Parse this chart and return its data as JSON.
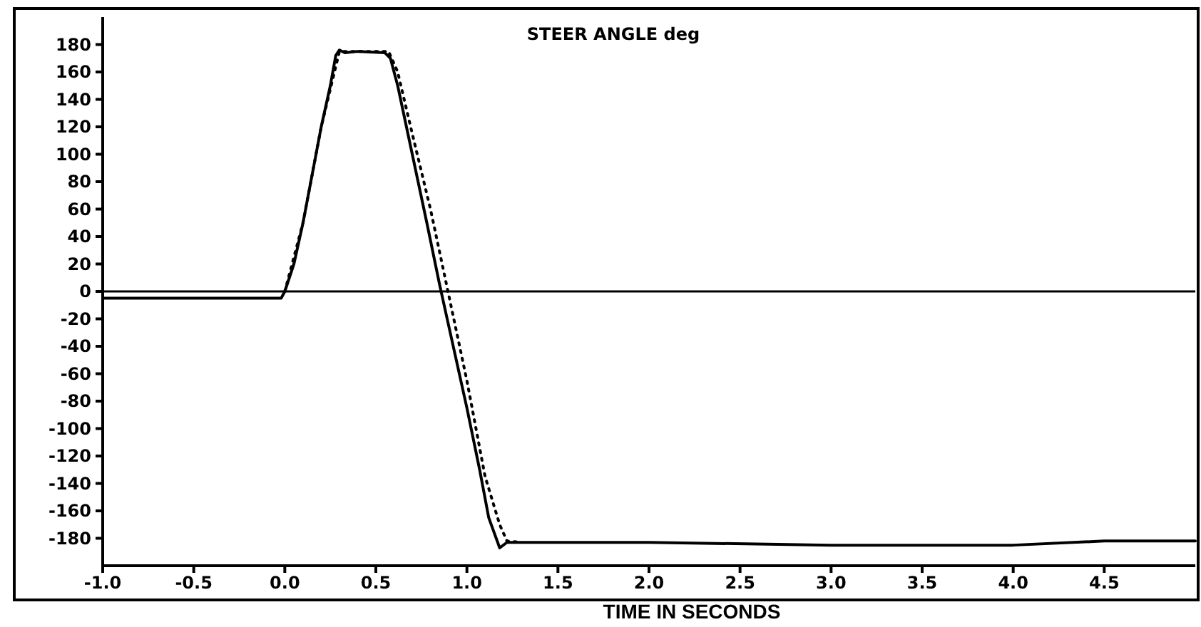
{
  "chart_data": {
    "type": "line",
    "title": "STEER ANGLE  deg",
    "xlabel": "TIME IN SECONDS",
    "xlim": [
      -1,
      5
    ],
    "xticks": [
      {
        "value": -1,
        "label": "-1.0"
      },
      {
        "value": -0.5,
        "label": "-0.5"
      },
      {
        "value": 0,
        "label": "0.0"
      },
      {
        "value": 0.5,
        "label": "0.5"
      },
      {
        "value": 1,
        "label": "1.0"
      },
      {
        "value": 1.5,
        "label": "1.5"
      },
      {
        "value": 2,
        "label": "2.0"
      },
      {
        "value": 2.5,
        "label": "2.5"
      },
      {
        "value": 3,
        "label": "3.0"
      },
      {
        "value": 3.5,
        "label": "3.5"
      },
      {
        "value": 4,
        "label": "4.0"
      },
      {
        "value": 4.5,
        "label": "4.5"
      }
    ],
    "ylim": [
      -200,
      200
    ],
    "yticks": [
      180,
      160,
      140,
      120,
      100,
      80,
      60,
      40,
      20,
      0,
      -20,
      -40,
      -60,
      -80,
      -100,
      -120,
      -140,
      -160,
      -180
    ],
    "grid": false,
    "ref_lines": [
      {
        "axis": "y",
        "value": 0,
        "color": "#000000"
      }
    ],
    "series": [
      {
        "color": "#000000",
        "line_style": "solid",
        "x": [
          -1,
          -0.02,
          0,
          0.05,
          0.1,
          0.15,
          0.2,
          0.25,
          0.28,
          0.3,
          0.33,
          0.4,
          0.55,
          0.58,
          0.62,
          0.7,
          0.78,
          0.85,
          0.9,
          1,
          1.07,
          1.12,
          1.18,
          1.22,
          1.5,
          2,
          3,
          4,
          4.5,
          5
        ],
        "values": [
          -5,
          -5,
          0,
          20,
          50,
          85,
          120,
          150,
          172,
          176,
          174,
          175,
          174,
          170,
          150,
          100,
          50,
          5,
          -25,
          -85,
          -130,
          -165,
          -187,
          -183,
          -183,
          -183,
          -185,
          -185,
          -182,
          -182
        ]
      },
      {
        "color": "#000000",
        "line_style": "dotted",
        "x": [
          0,
          0.1,
          0.2,
          0.3,
          0.57,
          0.62,
          0.7,
          0.8,
          0.88,
          1,
          1.1,
          1.18,
          1.22,
          1.3
        ],
        "values": [
          0,
          50,
          120,
          175,
          175,
          160,
          115,
          60,
          10,
          -65,
          -135,
          -170,
          -182,
          -183
        ]
      }
    ]
  }
}
